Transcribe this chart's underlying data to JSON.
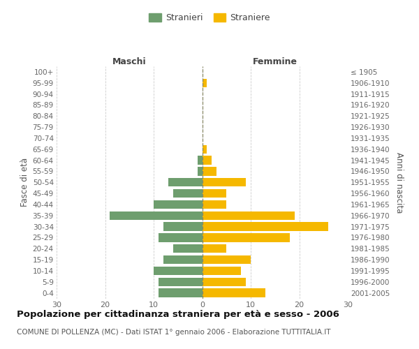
{
  "age_groups": [
    "100+",
    "95-99",
    "90-94",
    "85-89",
    "80-84",
    "75-79",
    "70-74",
    "65-69",
    "60-64",
    "55-59",
    "50-54",
    "45-49",
    "40-44",
    "35-39",
    "30-34",
    "25-29",
    "20-24",
    "15-19",
    "10-14",
    "5-9",
    "0-4"
  ],
  "birth_years": [
    "≤ 1905",
    "1906-1910",
    "1911-1915",
    "1916-1920",
    "1921-1925",
    "1926-1930",
    "1931-1935",
    "1936-1940",
    "1941-1945",
    "1946-1950",
    "1951-1955",
    "1956-1960",
    "1961-1965",
    "1966-1970",
    "1971-1975",
    "1976-1980",
    "1981-1985",
    "1986-1990",
    "1991-1995",
    "1996-2000",
    "2001-2005"
  ],
  "maschi": [
    0,
    0,
    0,
    0,
    0,
    0,
    0,
    0,
    1,
    1,
    7,
    6,
    10,
    19,
    8,
    9,
    6,
    8,
    10,
    9,
    9
  ],
  "femmine": [
    0,
    1,
    0,
    0,
    0,
    0,
    0,
    1,
    2,
    3,
    9,
    5,
    5,
    19,
    26,
    18,
    5,
    10,
    8,
    9,
    13
  ],
  "maschi_color": "#6e9e6e",
  "femmine_color": "#f5b800",
  "background_color": "#ffffff",
  "grid_color": "#cccccc",
  "title": "Popolazione per cittadinanza straniera per età e sesso - 2006",
  "subtitle": "COMUNE DI POLLENZA (MC) - Dati ISTAT 1° gennaio 2006 - Elaborazione TUTTITALIA.IT",
  "header_left": "Maschi",
  "header_right": "Femmine",
  "ylabel_left": "Fasce di età",
  "ylabel_right": "Anni di nascita",
  "legend_stranieri": "Stranieri",
  "legend_straniere": "Straniere",
  "xlim": 30
}
